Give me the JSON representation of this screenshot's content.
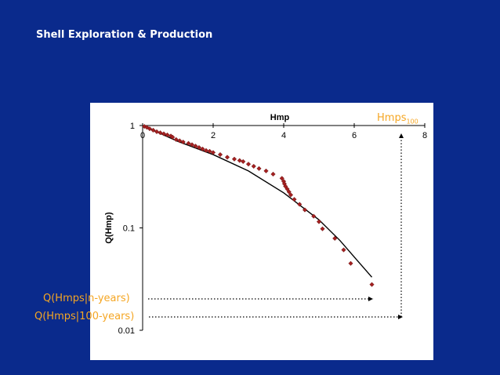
{
  "slide": {
    "header": "Shell Exploration & Production"
  },
  "annotations": {
    "hmps_base": "Hmps",
    "hmps_sub": "100",
    "q_n_years": "Q(Hmps|n-years)",
    "q_100_years": "Q(Hmps|100-years)"
  },
  "colors": {
    "background": "#0a2a8c",
    "annotation": "#f5a623",
    "points": "#a32020",
    "line": "#000000"
  },
  "chart_data": {
    "type": "scatter",
    "title": "",
    "xlabel": "Hmp",
    "ylabel": "Q(Hmp)",
    "xlim": [
      0,
      8
    ],
    "ylim": [
      0.01,
      1
    ],
    "yscale": "log",
    "x_ticks": [
      "0",
      "2",
      "4",
      "6",
      "8"
    ],
    "y_ticks": [
      "1",
      "0.1",
      "0.01"
    ],
    "x_axis_position": "top",
    "grid": false,
    "series": [
      {
        "kind": "points",
        "x": [
          0.05,
          0.12,
          0.2,
          0.3,
          0.4,
          0.5,
          0.6,
          0.7,
          0.8,
          0.85,
          0.95,
          1.05,
          1.15,
          1.3,
          1.4,
          1.5,
          1.6,
          1.7,
          1.8,
          1.9,
          2.0,
          2.2,
          2.4,
          2.6,
          2.75,
          2.85,
          3.0,
          3.15,
          3.3,
          3.5,
          3.7,
          3.95,
          4.0,
          4.02,
          4.05,
          4.1,
          4.15,
          4.2,
          4.3,
          4.45,
          4.6,
          4.85,
          5.0,
          5.1,
          5.45,
          5.7,
          5.9,
          6.5
        ],
        "y": [
          0.98,
          0.96,
          0.93,
          0.9,
          0.87,
          0.85,
          0.83,
          0.81,
          0.79,
          0.77,
          0.73,
          0.71,
          0.69,
          0.67,
          0.65,
          0.63,
          0.61,
          0.59,
          0.57,
          0.56,
          0.545,
          0.52,
          0.49,
          0.47,
          0.455,
          0.445,
          0.42,
          0.4,
          0.38,
          0.36,
          0.335,
          0.305,
          0.285,
          0.27,
          0.255,
          0.24,
          0.225,
          0.21,
          0.19,
          0.17,
          0.15,
          0.13,
          0.115,
          0.098,
          0.079,
          0.061,
          0.045,
          0.028
        ]
      },
      {
        "kind": "line",
        "x": [
          0,
          1.0,
          2.0,
          3.0,
          4.0,
          5.0,
          5.6,
          6.0,
          6.5
        ],
        "y": [
          1.0,
          0.7,
          0.52,
          0.36,
          0.22,
          0.12,
          0.075,
          0.052,
          0.033
        ]
      }
    ]
  }
}
